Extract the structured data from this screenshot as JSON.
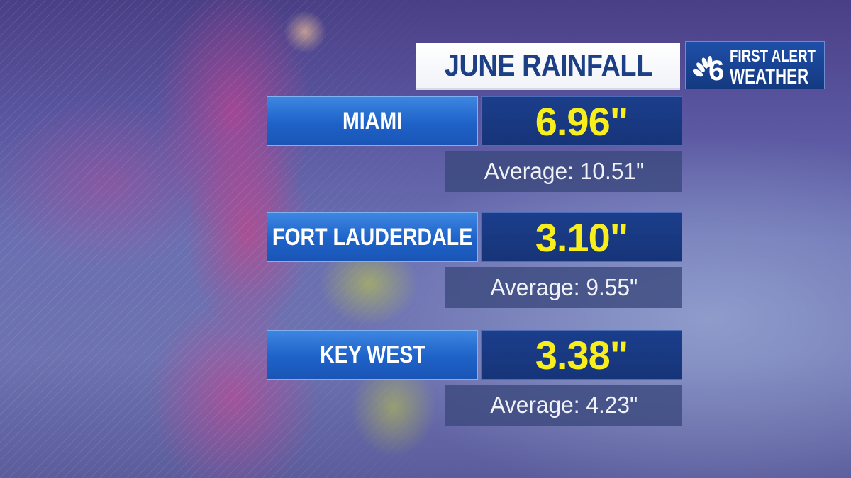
{
  "title": "JUNE RAINFALL",
  "logo": {
    "line1": "FIRST ALERT",
    "line2": "WEATHER",
    "station_mark": "nbc-peacock-6-icon",
    "colors": {
      "background": "#1b459a",
      "text": "#ffffff"
    }
  },
  "rows": [
    {
      "city": "MIAMI",
      "value": "6.96\"",
      "average": "Average: 10.51\""
    },
    {
      "city": "FORT LAUDERDALE",
      "value": "3.10\"",
      "average": "Average: 9.55\""
    },
    {
      "city": "KEY WEST",
      "value": "3.38\"",
      "average": "Average: 4.23\""
    }
  ],
  "colors": {
    "title_text": "#1c3f86",
    "city_box": "#2a70d4",
    "value_box": "#183a82",
    "value_text": "#f7ee1c",
    "average_box": "#3a487c"
  }
}
